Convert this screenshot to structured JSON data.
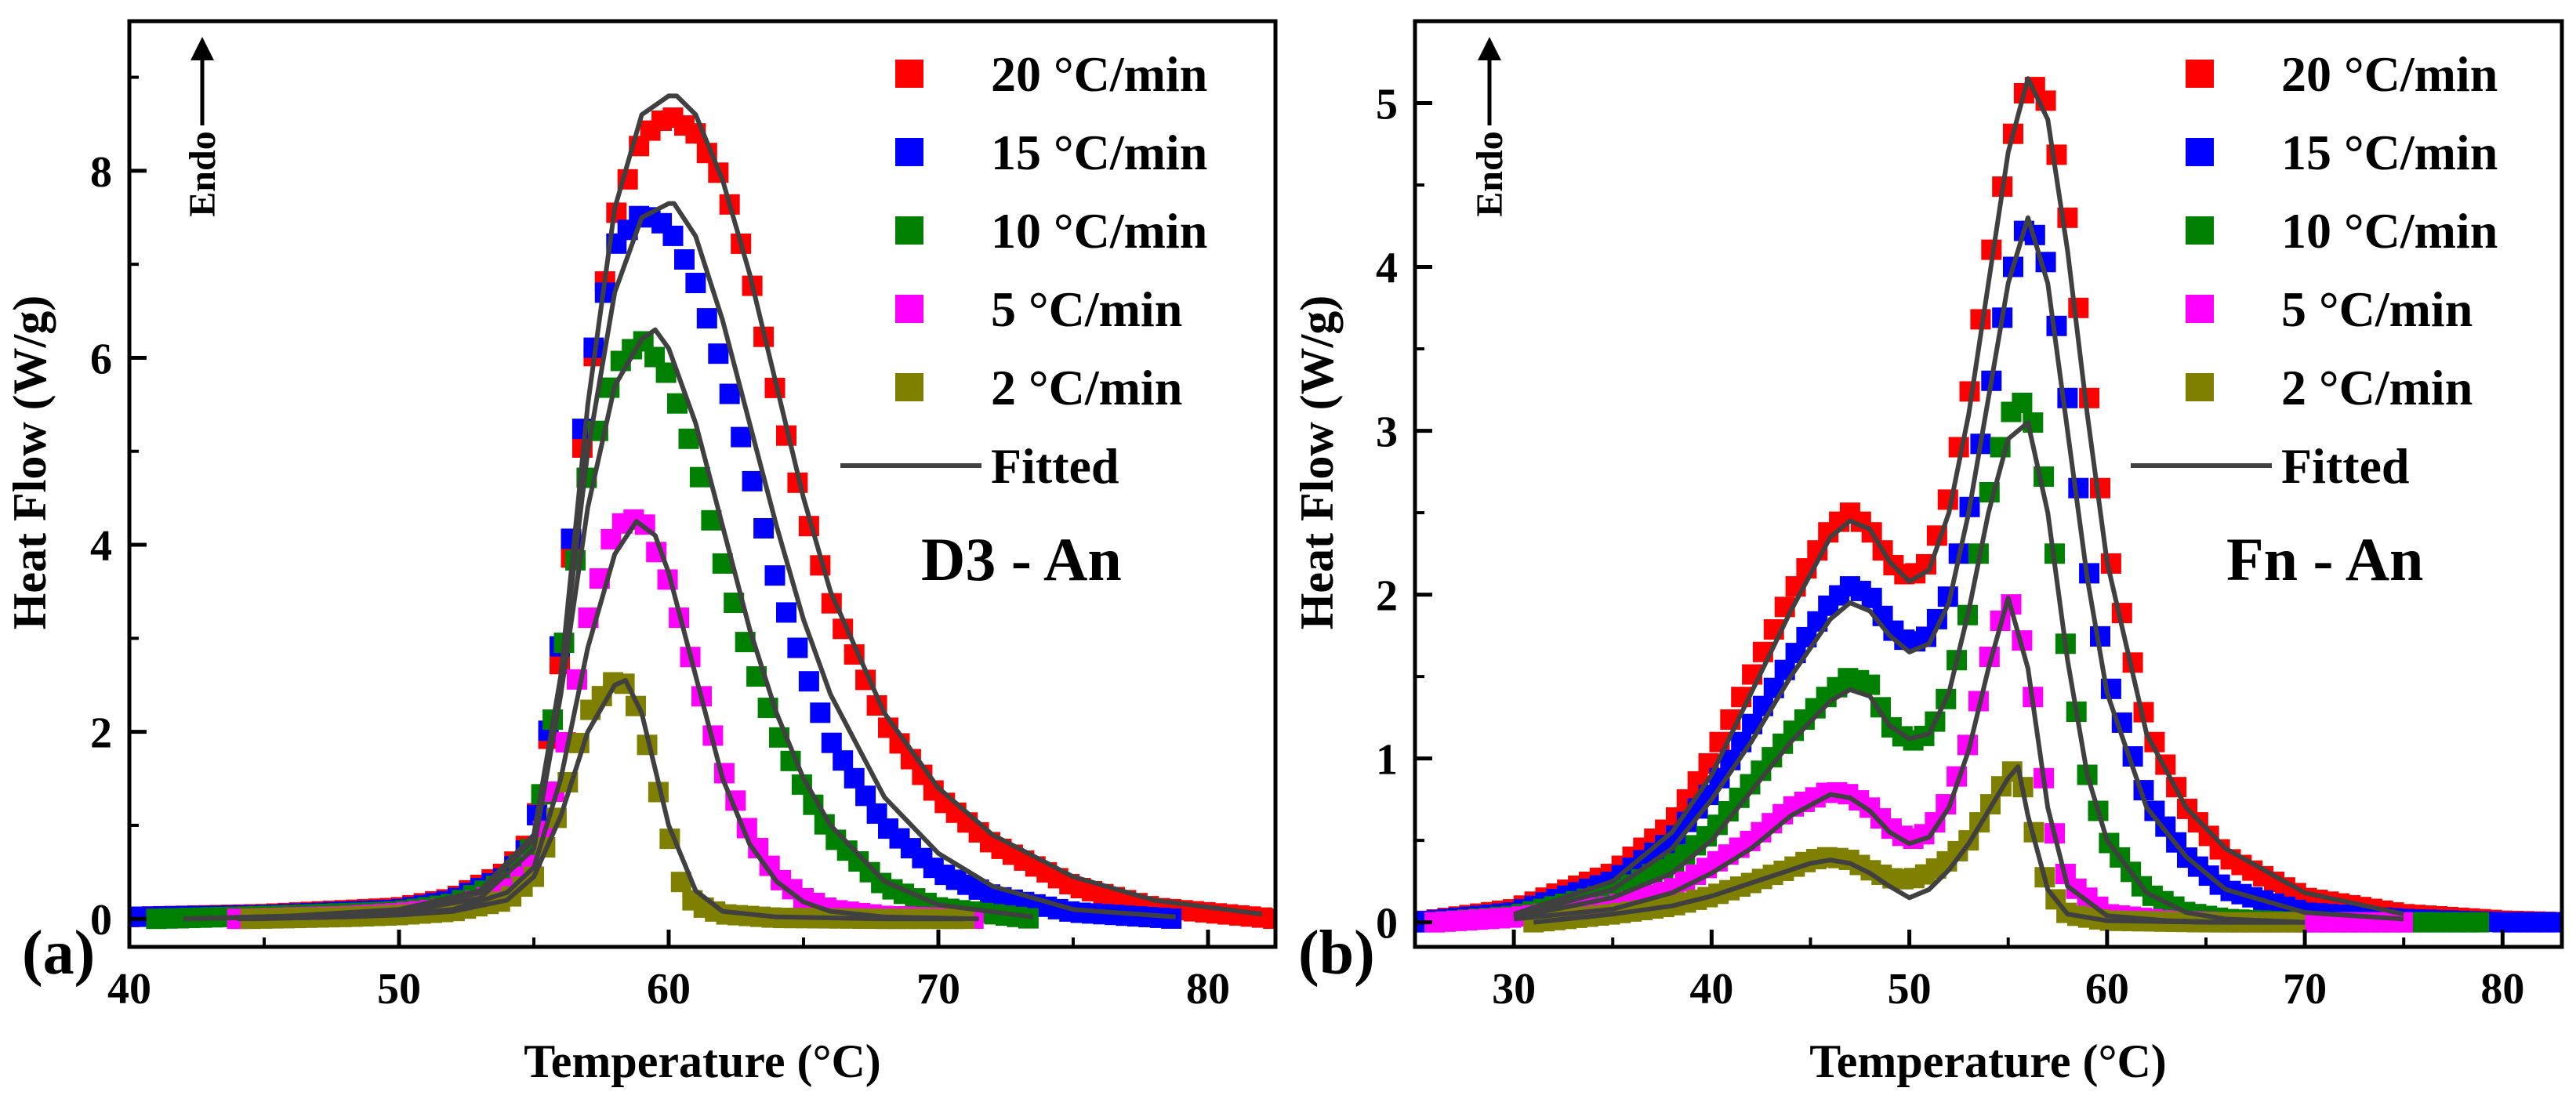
{
  "chart_data": [
    {
      "type": "scatter",
      "panel_label": "(a)",
      "annotation": "D3 - An",
      "xlabel": "Temperature (°C)",
      "ylabel": "Heat Flow (W/g)",
      "endo_label": "Endo",
      "xlim": [
        40,
        82.5
      ],
      "ylim": [
        -0.3,
        9.6
      ],
      "xticks": [
        40,
        50,
        60,
        70,
        80
      ],
      "yticks": [
        0,
        2,
        4,
        6,
        8
      ],
      "legend_position": "top-right",
      "fitted_label": "Fitted",
      "series": [
        {
          "name": "20 °C/min",
          "color": "#ff0000",
          "x": [
            40,
            45,
            50,
            52,
            54,
            55,
            56,
            57,
            58,
            59,
            60,
            61,
            62,
            63,
            64,
            65,
            66,
            68,
            70,
            72,
            75,
            78,
            82.5
          ],
          "values": [
            0.02,
            0.05,
            0.12,
            0.22,
            0.5,
            0.9,
            2.8,
            5.6,
            7.5,
            8.35,
            8.6,
            8.4,
            7.9,
            6.9,
            5.6,
            4.4,
            3.4,
            2.1,
            1.3,
            0.8,
            0.35,
            0.12,
            0.0
          ]
        },
        {
          "name": "15 °C/min",
          "color": "#0000ff",
          "x": [
            40,
            45,
            50,
            52,
            54,
            55,
            56,
            57,
            58,
            59,
            60,
            61,
            62,
            63,
            64,
            65,
            66,
            68,
            70,
            72,
            75,
            78.8
          ],
          "values": [
            0.02,
            0.04,
            0.1,
            0.2,
            0.45,
            0.85,
            3.0,
            5.8,
            7.2,
            7.55,
            7.4,
            6.8,
            5.9,
            4.8,
            3.6,
            2.7,
            1.9,
            1.0,
            0.5,
            0.25,
            0.07,
            0.0
          ]
        },
        {
          "name": "10 °C/min",
          "color": "#008000",
          "x": [
            41,
            45,
            50,
            52,
            54,
            55,
            56,
            57,
            58,
            59,
            60,
            61,
            62,
            63,
            64,
            65,
            66,
            68,
            70,
            73.5
          ],
          "values": [
            0.0,
            0.03,
            0.08,
            0.16,
            0.4,
            0.8,
            2.7,
            4.8,
            5.9,
            6.2,
            5.8,
            4.9,
            3.8,
            2.8,
            2.0,
            1.4,
            0.9,
            0.35,
            0.12,
            0.0
          ]
        },
        {
          "name": "5 °C/min",
          "color": "#ff00ff",
          "x": [
            44,
            48,
            50,
            52,
            54,
            55,
            56,
            57,
            58,
            59,
            60,
            61,
            62,
            63,
            64,
            65,
            66,
            68,
            71.5
          ],
          "values": [
            0.0,
            0.03,
            0.06,
            0.12,
            0.3,
            0.6,
            1.6,
            3.2,
            4.2,
            4.3,
            3.6,
            2.6,
            1.6,
            0.9,
            0.45,
            0.22,
            0.1,
            0.03,
            0.0
          ]
        },
        {
          "name": "2 °C/min",
          "color": "#808000",
          "x": [
            44.5,
            48,
            50,
            52,
            54,
            55,
            56,
            57,
            58,
            58.5,
            59,
            60,
            60.5,
            61,
            62,
            64,
            68,
            71
          ],
          "values": [
            0.0,
            0.02,
            0.04,
            0.08,
            0.2,
            0.45,
            1.2,
            2.2,
            2.55,
            2.5,
            2.1,
            0.9,
            0.35,
            0.15,
            0.05,
            0.01,
            0.0,
            0.0
          ]
        }
      ],
      "fitted": [
        {
          "name": "Fitted 20",
          "x": [
            42,
            46,
            50,
            53,
            55,
            56,
            57,
            58,
            59,
            60,
            60.3,
            61,
            62,
            63,
            64,
            65,
            66,
            68,
            70,
            72,
            75,
            78,
            82
          ],
          "values": [
            0.0,
            0.03,
            0.1,
            0.3,
            0.9,
            2.6,
            5.5,
            7.6,
            8.6,
            8.8,
            8.8,
            8.6,
            7.9,
            6.9,
            5.7,
            4.5,
            3.5,
            2.2,
            1.4,
            0.9,
            0.45,
            0.2,
            0.05
          ]
        },
        {
          "name": "Fitted 15",
          "x": [
            42,
            46,
            50,
            53,
            55,
            56,
            57,
            58,
            59,
            60,
            60.2,
            61,
            62,
            63,
            64,
            65,
            66,
            68,
            70,
            72,
            75,
            78.8
          ],
          "values": [
            0.0,
            0.03,
            0.09,
            0.28,
            0.85,
            2.6,
            5.0,
            6.7,
            7.5,
            7.65,
            7.65,
            7.3,
            6.4,
            5.3,
            4.2,
            3.2,
            2.4,
            1.3,
            0.7,
            0.35,
            0.1,
            0.02
          ]
        },
        {
          "name": "Fitted 10",
          "x": [
            42,
            46,
            50,
            53,
            55,
            56,
            57,
            58,
            59,
            59.5,
            60,
            61,
            62,
            63,
            64,
            65,
            66,
            68,
            70,
            73.5
          ],
          "values": [
            0.0,
            0.02,
            0.07,
            0.22,
            0.75,
            2.4,
            4.4,
            5.7,
            6.2,
            6.3,
            6.1,
            5.3,
            4.2,
            3.1,
            2.2,
            1.5,
            1.0,
            0.4,
            0.15,
            0.02
          ]
        },
        {
          "name": "Fitted 5",
          "x": [
            44,
            48,
            50,
            52,
            54,
            55,
            56,
            57,
            58,
            58.8,
            59.5,
            60,
            61,
            62,
            63,
            64,
            65,
            66,
            68,
            71.5
          ],
          "values": [
            0.0,
            0.02,
            0.05,
            0.1,
            0.28,
            0.55,
            1.5,
            2.9,
            3.9,
            4.25,
            4.1,
            3.7,
            2.6,
            1.5,
            0.8,
            0.4,
            0.18,
            0.08,
            0.02,
            0.0
          ]
        },
        {
          "name": "Fitted 2",
          "x": [
            44.5,
            48,
            50,
            52,
            54,
            55,
            56,
            57,
            58,
            58.4,
            59,
            60,
            61,
            62,
            64,
            68,
            71
          ],
          "values": [
            0.0,
            0.02,
            0.04,
            0.08,
            0.2,
            0.45,
            1.1,
            2.0,
            2.5,
            2.55,
            2.2,
            1.0,
            0.3,
            0.08,
            0.02,
            0.0,
            0.0
          ]
        }
      ]
    },
    {
      "type": "scatter",
      "panel_label": "(b)",
      "annotation": "Fn - An",
      "xlabel": "Temperature (°C)",
      "ylabel": "Heat Flow (W/g)",
      "endo_label": "Endo",
      "xlim": [
        25,
        83
      ],
      "ylim": [
        -0.15,
        5.5
      ],
      "xticks": [
        30,
        40,
        50,
        60,
        70,
        80
      ],
      "yticks": [
        0,
        1,
        2,
        3,
        4,
        5
      ],
      "legend_position": "top-right",
      "fitted_label": "Fitted",
      "series": [
        {
          "name": "20 °C/min",
          "color": "#ff0000",
          "x": [
            25,
            30,
            35,
            38,
            40,
            42,
            44,
            46,
            47,
            48,
            49,
            50,
            51,
            52,
            53,
            54,
            55,
            56,
            57,
            58,
            59,
            60,
            62,
            64,
            66,
            70,
            75,
            80,
            83
          ],
          "values": [
            0.0,
            0.08,
            0.3,
            0.6,
            1.0,
            1.5,
            2.0,
            2.4,
            2.5,
            2.4,
            2.2,
            2.1,
            2.2,
            2.6,
            3.2,
            4.0,
            4.7,
            5.15,
            5.0,
            4.3,
            3.3,
            2.3,
            1.2,
            0.7,
            0.4,
            0.15,
            0.05,
            0.01,
            0.0
          ]
        },
        {
          "name": "15 °C/min",
          "color": "#0000ff",
          "x": [
            25,
            30,
            35,
            38,
            40,
            42,
            44,
            46,
            47,
            48,
            49,
            50,
            51,
            52,
            53,
            54,
            55,
            56,
            57,
            58,
            59,
            60,
            62,
            64,
            66,
            70,
            75,
            80,
            83
          ],
          "values": [
            0.0,
            0.06,
            0.25,
            0.5,
            0.8,
            1.2,
            1.6,
            1.95,
            2.05,
            2.0,
            1.8,
            1.7,
            1.75,
            2.0,
            2.5,
            3.2,
            3.9,
            4.3,
            4.0,
            3.2,
            2.2,
            1.5,
            0.75,
            0.4,
            0.2,
            0.06,
            0.02,
            0.0,
            0.0
          ]
        },
        {
          "name": "10 °C/min",
          "color": "#008000",
          "x": [
            26,
            30,
            35,
            38,
            40,
            42,
            44,
            46,
            47,
            48,
            49,
            50,
            51,
            52,
            53,
            54,
            55,
            56,
            57,
            58,
            59,
            60,
            62,
            64,
            66,
            70,
            75,
            79
          ],
          "values": [
            0.0,
            0.04,
            0.18,
            0.35,
            0.55,
            0.85,
            1.15,
            1.4,
            1.5,
            1.45,
            1.2,
            1.1,
            1.15,
            1.4,
            1.9,
            2.6,
            3.1,
            3.2,
            2.6,
            1.6,
            0.9,
            0.5,
            0.18,
            0.06,
            0.02,
            0.0,
            0.0,
            0.0
          ]
        },
        {
          "name": "5 °C/min",
          "color": "#ff00ff",
          "x": [
            26,
            30,
            35,
            38,
            40,
            42,
            44,
            46,
            47,
            48,
            49,
            50,
            51,
            52,
            53,
            54,
            55,
            56,
            57,
            58,
            60,
            63,
            66,
            70,
            75
          ],
          "values": [
            0.0,
            0.03,
            0.1,
            0.2,
            0.35,
            0.5,
            0.7,
            0.8,
            0.78,
            0.7,
            0.58,
            0.5,
            0.55,
            0.75,
            1.1,
            1.6,
            2.0,
            1.6,
            0.7,
            0.25,
            0.05,
            0.01,
            0.0,
            0.0,
            0.0
          ]
        },
        {
          "name": "2 °C/min",
          "color": "#808000",
          "x": [
            31,
            35,
            38,
            40,
            42,
            44,
            45,
            46,
            47,
            48,
            49,
            50,
            51,
            52,
            53,
            54,
            55,
            55.5,
            56,
            57,
            58,
            60,
            65,
            70
          ],
          "values": [
            0.0,
            0.05,
            0.1,
            0.16,
            0.24,
            0.33,
            0.38,
            0.4,
            0.38,
            0.32,
            0.27,
            0.26,
            0.3,
            0.38,
            0.5,
            0.7,
            0.9,
            0.95,
            0.7,
            0.2,
            0.05,
            0.01,
            0.0,
            0.0
          ]
        }
      ],
      "fitted": [
        {
          "name": "Fitted 20",
          "x": [
            30,
            35,
            38,
            40,
            42,
            44,
            46,
            47,
            48,
            49,
            50,
            51,
            52,
            53,
            54,
            55,
            56,
            57,
            58,
            59,
            60,
            62,
            64,
            66,
            70,
            75
          ],
          "values": [
            0.05,
            0.25,
            0.55,
            0.9,
            1.4,
            1.9,
            2.35,
            2.45,
            2.4,
            2.2,
            2.08,
            2.15,
            2.5,
            3.1,
            3.9,
            4.7,
            5.15,
            4.9,
            4.1,
            3.1,
            2.2,
            1.15,
            0.7,
            0.45,
            0.18,
            0.05
          ]
        },
        {
          "name": "Fitted 15",
          "x": [
            30,
            35,
            38,
            40,
            42,
            44,
            46,
            47,
            48,
            49,
            50,
            51,
            52,
            53,
            54,
            55,
            56,
            57,
            58,
            59,
            60,
            62,
            64,
            66,
            70,
            75
          ],
          "values": [
            0.04,
            0.2,
            0.45,
            0.75,
            1.1,
            1.5,
            1.85,
            1.95,
            1.9,
            1.75,
            1.65,
            1.7,
            1.95,
            2.5,
            3.2,
            3.9,
            4.3,
            3.9,
            3.0,
            2.1,
            1.4,
            0.7,
            0.4,
            0.2,
            0.06,
            0.02
          ]
        },
        {
          "name": "Fitted 10",
          "x": [
            30,
            35,
            38,
            40,
            42,
            44,
            46,
            47,
            48,
            49,
            50,
            51,
            52,
            53,
            54,
            55,
            56,
            57,
            58,
            59,
            60,
            62,
            64,
            66,
            70
          ],
          "values": [
            0.03,
            0.15,
            0.3,
            0.5,
            0.8,
            1.1,
            1.35,
            1.42,
            1.38,
            1.2,
            1.12,
            1.15,
            1.4,
            1.9,
            2.5,
            2.95,
            3.05,
            2.5,
            1.6,
            0.9,
            0.5,
            0.18,
            0.06,
            0.02,
            0.0
          ]
        },
        {
          "name": "Fitted 5",
          "x": [
            30,
            35,
            38,
            40,
            42,
            44,
            46,
            47,
            48,
            49,
            50,
            51,
            52,
            53,
            54,
            55,
            56,
            57,
            58,
            60,
            63,
            66,
            70
          ],
          "values": [
            0.02,
            0.08,
            0.18,
            0.3,
            0.45,
            0.65,
            0.78,
            0.76,
            0.68,
            0.55,
            0.48,
            0.52,
            0.7,
            1.05,
            1.55,
            1.98,
            1.55,
            0.7,
            0.22,
            0.04,
            0.01,
            0.0,
            0.0
          ]
        },
        {
          "name": "Fitted 2",
          "x": [
            31,
            35,
            38,
            40,
            42,
            44,
            45,
            46,
            47,
            48,
            49,
            50,
            51,
            52,
            53,
            54,
            55,
            55.5,
            56,
            57,
            58,
            60,
            65,
            70
          ],
          "values": [
            0.0,
            0.05,
            0.1,
            0.16,
            0.24,
            0.32,
            0.36,
            0.38,
            0.36,
            0.3,
            0.22,
            0.15,
            0.2,
            0.32,
            0.48,
            0.68,
            0.88,
            0.95,
            0.65,
            0.2,
            0.05,
            0.01,
            0.0,
            0.0
          ]
        }
      ]
    }
  ]
}
